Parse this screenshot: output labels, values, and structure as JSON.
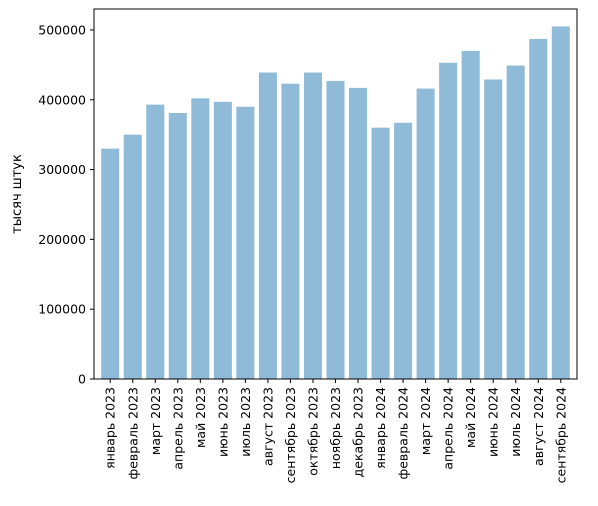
{
  "chart_data": {
    "type": "bar",
    "title": "",
    "xlabel": "",
    "ylabel": "тысяч штук",
    "ylim": [
      0,
      530000
    ],
    "yticks": [
      0,
      100000,
      200000,
      300000,
      400000,
      500000
    ],
    "ytick_labels": [
      "0",
      "100000",
      "200000",
      "300000",
      "400000",
      "500000"
    ],
    "grid": false,
    "legend": "none",
    "bar_color": "#8fbad8",
    "categories": [
      "январь 2023",
      "февраль 2023",
      "март 2023",
      "апрель 2023",
      "май 2023",
      "июнь 2023",
      "июль 2023",
      "август 2023",
      "сентябрь 2023",
      "октябрь 2023",
      "ноябрь 2023",
      "декабрь 2023",
      "январь 2024",
      "февраль 2024",
      "март 2024",
      "апрель 2024",
      "май 2024",
      "июнь 2024",
      "июль 2024",
      "август 2024",
      "сентябрь 2024"
    ],
    "values": [
      330000,
      350000,
      393000,
      381000,
      402000,
      397000,
      390000,
      439000,
      423000,
      439000,
      427000,
      417000,
      360000,
      367000,
      416000,
      453000,
      470000,
      429000,
      449000,
      487000,
      505000
    ]
  }
}
